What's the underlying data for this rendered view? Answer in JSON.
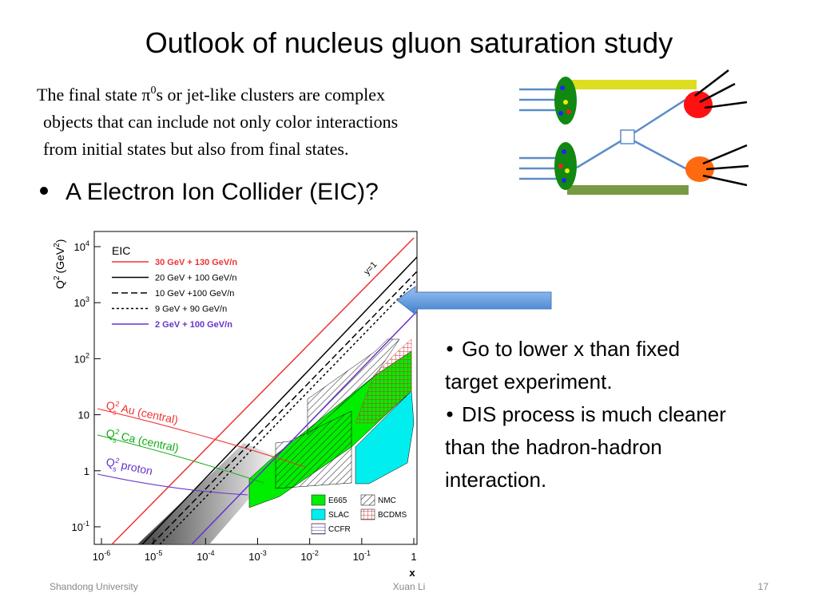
{
  "title": "Outlook of nucleus gluon saturation study",
  "intro": {
    "line1_pre": "The final state π",
    "line1_sup": "0",
    "line1_post": "s or jet-like clusters are complex",
    "line2": "objects that can include not only color interactions",
    "line3": "from initial states but also from final states."
  },
  "bullet": "A Electron Ion Collider (EIC)?",
  "side_bullets": [
    [
      "Go to lower x than fixed",
      "target experiment."
    ],
    [
      "DIS process is much cleaner",
      "than the hadron-hadron",
      "interaction."
    ]
  ],
  "plot": {
    "label": "EIC",
    "legend": [
      "30 GeV + 130 GeV/n",
      "20 GeV + 100 GeV/n",
      "10 GeV +100 GeV/n",
      "9 GeV + 90 GeV/n",
      "2 GeV + 100 GeV/n"
    ],
    "line_label": "y=1",
    "saturation": [
      {
        "q": "Q",
        "sup": "2",
        "sub": "s",
        "name": "Au (central)"
      },
      {
        "q": "Q",
        "sup": "2",
        "sub": "s",
        "name": "Ca (central)"
      },
      {
        "q": "Q",
        "sup": "2",
        "sub": "s",
        "name": "proton"
      }
    ],
    "experiments": [
      "E665",
      "NMC",
      "SLAC",
      "BCDMS",
      "CCFR"
    ],
    "xlabel": "x",
    "ylabel": {
      "q": "Q",
      "sup": "2",
      "unit": "(GeV",
      "unit_sup": "2",
      "close": ")"
    },
    "xticks": [
      {
        "base": "10",
        "exp": "-6"
      },
      {
        "base": "10",
        "exp": "-5"
      },
      {
        "base": "10",
        "exp": "-4"
      },
      {
        "base": "10",
        "exp": "-3"
      },
      {
        "base": "10",
        "exp": "-2"
      },
      {
        "base": "10",
        "exp": "-1"
      },
      {
        "base": "1"
      }
    ],
    "yticks": [
      {
        "base": "10",
        "exp": "4"
      },
      {
        "base": "10",
        "exp": "3"
      },
      {
        "base": "10",
        "exp": "2"
      },
      {
        "base": "10"
      },
      {
        "base": "1"
      },
      {
        "base": "10",
        "exp": "-1"
      }
    ]
  },
  "footer": {
    "left": "Shandong University",
    "center": "Xuan Li",
    "right": "17"
  }
}
